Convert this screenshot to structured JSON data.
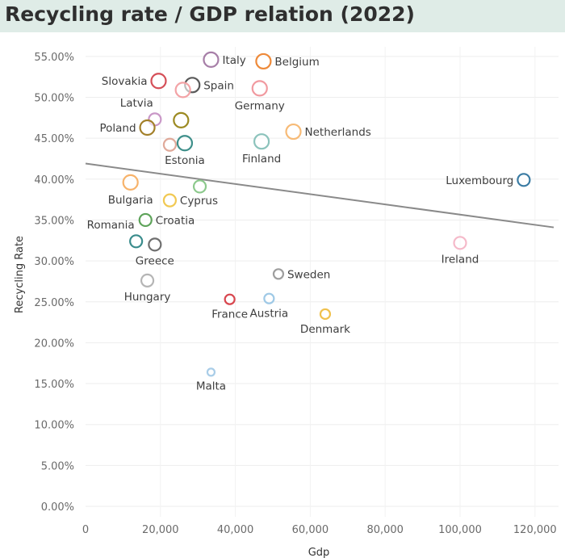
{
  "title": "Recycling rate / GDP relation (2022)",
  "chart_data": {
    "type": "scatter",
    "title": "Recycling rate / GDP relation (2022)",
    "xlabel": "Gdp",
    "ylabel": "Recycling Rate",
    "xlim": [
      0,
      125000
    ],
    "ylim": [
      0,
      0.565
    ],
    "x_ticks": [
      0,
      20000,
      40000,
      60000,
      80000,
      100000,
      120000
    ],
    "x_tick_labels": [
      "0",
      "20,000",
      "40,000",
      "60,000",
      "80,000",
      "100,000",
      "120,000"
    ],
    "y_ticks": [
      0,
      0.05,
      0.1,
      0.15,
      0.2,
      0.25,
      0.3,
      0.35,
      0.4,
      0.45,
      0.5,
      0.55
    ],
    "y_tick_labels": [
      "0.00%",
      "5.00%",
      "10.00%",
      "15.00%",
      "20.00%",
      "25.00%",
      "30.00%",
      "35.00%",
      "40.00%",
      "45.00%",
      "50.00%",
      "55.00%"
    ],
    "grid": true,
    "legend": "none",
    "trend_line": {
      "x": [
        0,
        125000
      ],
      "y": [
        0.419,
        0.341
      ],
      "color": "#8a8a8a"
    },
    "points": [
      {
        "name": "Italy",
        "x": 33500,
        "y": 0.546,
        "color": "#a77fa8",
        "size": "large",
        "label_pos": "right"
      },
      {
        "name": "Belgium",
        "x": 47500,
        "y": 0.544,
        "color": "#ee8a3a",
        "size": "large",
        "label_pos": "right"
      },
      {
        "name": "Slovakia",
        "x": 19500,
        "y": 0.52,
        "color": "#d54f58",
        "size": "large",
        "label_pos": "left"
      },
      {
        "name": "Spain",
        "x": 28500,
        "y": 0.515,
        "color": "#5a5a5a",
        "size": "large",
        "label_pos": "right"
      },
      {
        "name": "",
        "x": 26000,
        "y": 0.509,
        "color": "#f3a3a6",
        "size": "large",
        "label_pos": "none"
      },
      {
        "name": "Germany",
        "x": 46500,
        "y": 0.511,
        "color": "#f19aa0",
        "size": "large",
        "label_pos": "below"
      },
      {
        "name": "Latvia",
        "x": 18500,
        "y": 0.473,
        "color": "#c997c7",
        "size": "medium",
        "label_pos": "left"
      },
      {
        "name": "",
        "x": 25500,
        "y": 0.472,
        "color": "#9c8a22",
        "size": "large",
        "label_pos": "none"
      },
      {
        "name": "Poland",
        "x": 16500,
        "y": 0.463,
        "color": "#a3802a",
        "size": "large",
        "label_pos": "left"
      },
      {
        "name": "",
        "x": 22500,
        "y": 0.442,
        "color": "#e0aa9a",
        "size": "medium",
        "label_pos": "none"
      },
      {
        "name": "Estonia",
        "x": 26500,
        "y": 0.444,
        "color": "#3e8f8a",
        "size": "large",
        "label_pos": "below"
      },
      {
        "name": "Finland",
        "x": 47000,
        "y": 0.446,
        "color": "#8cc3bc",
        "size": "large",
        "label_pos": "below"
      },
      {
        "name": "Netherlands",
        "x": 55500,
        "y": 0.458,
        "color": "#f7bb77",
        "size": "large",
        "label_pos": "right"
      },
      {
        "name": "Luxembourg",
        "x": 117000,
        "y": 0.399,
        "color": "#3a7ba3",
        "size": "medium",
        "label_pos": "left"
      },
      {
        "name": "Bulgaria",
        "x": 12000,
        "y": 0.396,
        "color": "#f7b36b",
        "size": "large",
        "label_pos": "below"
      },
      {
        "name": "Cyprus",
        "x": 22500,
        "y": 0.374,
        "color": "#f1c953",
        "size": "medium",
        "label_pos": "right"
      },
      {
        "name": "",
        "x": 30500,
        "y": 0.391,
        "color": "#8cc98c",
        "size": "medium",
        "label_pos": "none"
      },
      {
        "name": "Croatia",
        "x": 16000,
        "y": 0.35,
        "color": "#5ea35a",
        "size": "medium",
        "label_pos": "right"
      },
      {
        "name": "Romania",
        "x": 13500,
        "y": 0.324,
        "color": "#3a8c8c",
        "size": "medium",
        "label_pos": "left"
      },
      {
        "name": "Greece",
        "x": 18500,
        "y": 0.32,
        "color": "#6f6f6f",
        "size": "medium",
        "label_pos": "below"
      },
      {
        "name": "Hungary",
        "x": 16500,
        "y": 0.276,
        "color": "#b5b5b5",
        "size": "medium",
        "label_pos": "below"
      },
      {
        "name": "Sweden",
        "x": 51500,
        "y": 0.284,
        "color": "#9e9e9e",
        "size": "small",
        "label_pos": "right"
      },
      {
        "name": "France",
        "x": 38500,
        "y": 0.253,
        "color": "#d8474f",
        "size": "small",
        "label_pos": "below"
      },
      {
        "name": "Austria",
        "x": 49000,
        "y": 0.254,
        "color": "#9fc9e6",
        "size": "small",
        "label_pos": "below"
      },
      {
        "name": "Denmark",
        "x": 64000,
        "y": 0.235,
        "color": "#f0c14d",
        "size": "small",
        "label_pos": "below"
      },
      {
        "name": "Ireland",
        "x": 100000,
        "y": 0.322,
        "color": "#f5b9c9",
        "size": "medium",
        "label_pos": "below"
      },
      {
        "name": "Malta",
        "x": 33500,
        "y": 0.164,
        "color": "#a9cde8",
        "size": "tiny",
        "label_pos": "below"
      }
    ]
  }
}
